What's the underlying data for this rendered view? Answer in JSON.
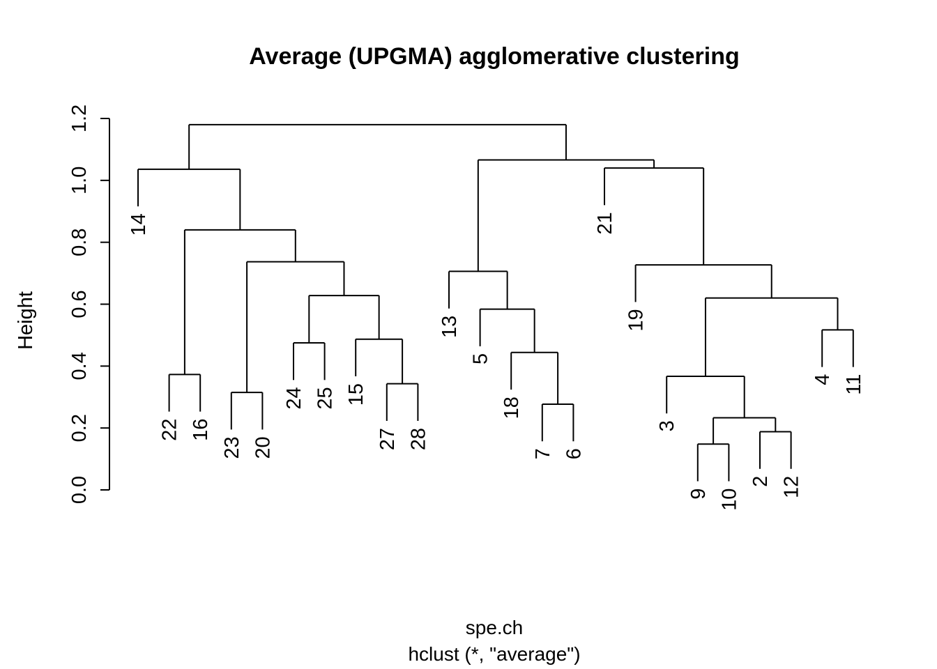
{
  "chart_data": {
    "type": "dendrogram",
    "title": "Average (UPGMA) agglomerative clustering",
    "xlabel": "spe.ch",
    "sublabel": "hclust (*, \"average\")",
    "ylabel": "Height",
    "ylim": [
      0,
      1.2
    ],
    "yticks": [
      0.0,
      0.2,
      0.4,
      0.6,
      0.8,
      1.0,
      1.2
    ],
    "ytick_labels": [
      "0.0",
      "0.2",
      "0.4",
      "0.6",
      "0.8",
      "1.0",
      "1.2"
    ],
    "hang_offset": 0.12,
    "order": [
      "14",
      "22",
      "16",
      "23",
      "20",
      "24",
      "25",
      "15",
      "27",
      "28",
      "13",
      "5",
      "18",
      "7",
      "6",
      "21",
      "19",
      "3",
      "9",
      "10",
      "2",
      "12",
      "4",
      "11"
    ],
    "merges": [
      {
        "id": "m1",
        "left": "22",
        "right": "16",
        "height": 0.373
      },
      {
        "id": "m2",
        "left": "23",
        "right": "20",
        "height": 0.315
      },
      {
        "id": "m3",
        "left": "24",
        "right": "25",
        "height": 0.475
      },
      {
        "id": "m4",
        "left": "27",
        "right": "28",
        "height": 0.343
      },
      {
        "id": "m5",
        "left": "15",
        "right": "m4",
        "height": 0.487
      },
      {
        "id": "m6",
        "left": "m3",
        "right": "m5",
        "height": 0.628
      },
      {
        "id": "m7",
        "left": "m2",
        "right": "m6",
        "height": 0.737
      },
      {
        "id": "m8",
        "left": "m1",
        "right": "m7",
        "height": 0.84
      },
      {
        "id": "m9",
        "left": "14",
        "right": "m8",
        "height": 1.036
      },
      {
        "id": "m10",
        "left": "7",
        "right": "6",
        "height": 0.277
      },
      {
        "id": "m11",
        "left": "18",
        "right": "m10",
        "height": 0.444
      },
      {
        "id": "m12",
        "left": "5",
        "right": "m11",
        "height": 0.584
      },
      {
        "id": "m13",
        "left": "13",
        "right": "m12",
        "height": 0.706
      },
      {
        "id": "m14",
        "left": "9",
        "right": "10",
        "height": 0.148
      },
      {
        "id": "m15",
        "left": "2",
        "right": "12",
        "height": 0.188
      },
      {
        "id": "m16",
        "left": "m14",
        "right": "m15",
        "height": 0.233
      },
      {
        "id": "m17",
        "left": "3",
        "right": "m16",
        "height": 0.367
      },
      {
        "id": "m18",
        "left": "4",
        "right": "11",
        "height": 0.517
      },
      {
        "id": "m19",
        "left": "m17",
        "right": "m18",
        "height": 0.62
      },
      {
        "id": "m20",
        "left": "19",
        "right": "m19",
        "height": 0.727
      },
      {
        "id": "m21",
        "left": "21",
        "right": "m20",
        "height": 1.04
      },
      {
        "id": "m22",
        "left": "m13",
        "right": "m21",
        "height": 1.066
      },
      {
        "id": "m23",
        "left": "m9",
        "right": "m22",
        "height": 1.18
      }
    ]
  }
}
